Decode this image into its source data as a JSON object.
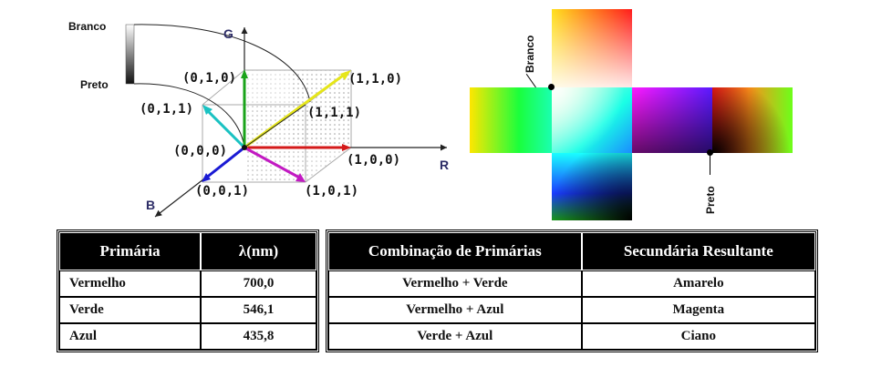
{
  "cube": {
    "axis_g": "G",
    "axis_r": "R",
    "axis_b": "B",
    "coords": {
      "origin": "(0,0,0)",
      "green_top": "(0,1,0)",
      "white": "(1,1,1)",
      "yellow": "(1,1,0)",
      "cyan": "(0,1,1)",
      "red": "(1,0,0)",
      "blue": "(0,0,1)",
      "magenta": "(1,0,1)"
    },
    "gray_scale": {
      "top_label": "Branco",
      "bottom_label": "Preto"
    }
  },
  "unfolded_cube": {
    "white_label": "Branco",
    "black_label": "Preto"
  },
  "primaries_table": {
    "headers": [
      "Primária",
      "λ(nm)"
    ],
    "rows": [
      [
        "Vermelho",
        "700,0"
      ],
      [
        "Verde",
        "546,1"
      ],
      [
        "Azul",
        "435,8"
      ]
    ]
  },
  "combinations_table": {
    "headers": [
      "Combinação de Primárias",
      "Secundária Resultante"
    ],
    "rows": [
      [
        "Vermelho + Verde",
        "Amarelo"
      ],
      [
        "Vermelho + Azul",
        "Magenta"
      ],
      [
        "Verde + Azul",
        "Ciano"
      ]
    ]
  },
  "colors": {
    "red_axis": "#d41a1a",
    "green_axis": "#1aa31a",
    "blue_axis": "#1a1ad4",
    "yellow_diag": "#e6e61a",
    "magenta_edge": "#c21ac2",
    "cyan_edge": "#1ac2c2"
  }
}
